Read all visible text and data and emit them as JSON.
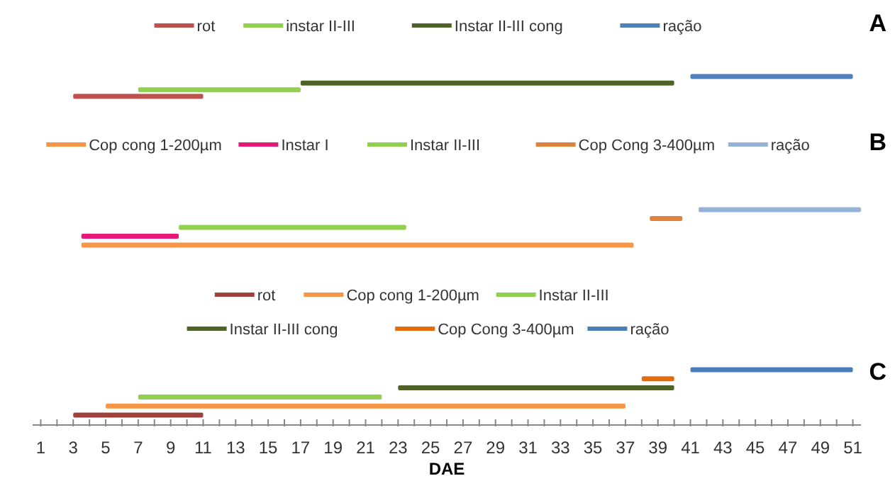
{
  "chart_data": [
    {
      "type": "bar",
      "orientation": "horizontal",
      "stacked": true,
      "categories": [
        null,
        null,
        null,
        null
      ],
      "annotations": [
        "A"
      ],
      "legend": "top",
      "tick_labels": false,
      "xlim": [
        1,
        51
      ],
      "xticks": [
        1,
        3,
        5,
        7,
        9,
        11,
        13,
        15,
        17,
        19,
        21,
        23,
        25,
        27,
        29,
        31,
        33,
        35,
        37,
        39,
        41,
        43,
        45,
        47,
        49,
        51
      ],
      "series": [
        {
          "name": "rot",
          "color": "#c0504d",
          "base": [
            null,
            null,
            null,
            3
          ],
          "values": [
            null,
            null,
            null,
            8
          ]
        },
        {
          "name": "instar II-III",
          "color": "#92d050",
          "base": [
            null,
            null,
            7,
            null
          ],
          "values": [
            null,
            null,
            10,
            null
          ]
        },
        {
          "name": "Instar II-III cong",
          "color": "#4f6228",
          "base": [
            null,
            17,
            null,
            null
          ],
          "values": [
            null,
            23,
            null,
            null
          ]
        },
        {
          "name": "ração",
          "color": "#4f81bd",
          "base": [
            41,
            null,
            null,
            null
          ],
          "values": [
            10,
            null,
            null,
            null
          ]
        }
      ]
    },
    {
      "type": "bar",
      "orientation": "horizontal",
      "stacked": true,
      "categories": [
        null,
        null,
        null,
        null,
        null
      ],
      "annotations": [
        "B"
      ],
      "legend": "top",
      "tick_labels": false,
      "xlim": [
        1,
        51
      ],
      "xticks": [
        1,
        3,
        5,
        7,
        9,
        11,
        13,
        15,
        17,
        19,
        21,
        23,
        25,
        27,
        29,
        31,
        33,
        35,
        37,
        39,
        41,
        43,
        45,
        47,
        49,
        51
      ],
      "series": [
        {
          "name": "Cop cong 1-200µm",
          "color": "#f79646",
          "base": [
            null,
            null,
            null,
            null,
            3.5
          ],
          "values": [
            null,
            null,
            null,
            null,
            34
          ]
        },
        {
          "name": "Instar I",
          "color": "#e6197a",
          "base": [
            null,
            null,
            null,
            3.5,
            null
          ],
          "values": [
            null,
            null,
            null,
            6,
            null
          ]
        },
        {
          "name": "Instar II-III",
          "color": "#92d050",
          "base": [
            null,
            null,
            9.5,
            null,
            null
          ],
          "values": [
            null,
            null,
            14,
            null,
            null
          ]
        },
        {
          "name": "Cop Cong 3-400µm",
          "color": "#e0823c",
          "base": [
            null,
            38.5,
            null,
            null,
            null
          ],
          "values": [
            null,
            2,
            null,
            null,
            null
          ]
        },
        {
          "name": "ração",
          "color": "#95b3d7",
          "base": [
            41.5,
            null,
            null,
            null,
            null
          ],
          "values": [
            10,
            null,
            null,
            null,
            null
          ]
        }
      ]
    },
    {
      "type": "bar",
      "orientation": "horizontal",
      "stacked": true,
      "categories": [
        null,
        null,
        null,
        null,
        null,
        null
      ],
      "annotations": [
        "C"
      ],
      "legend": "top",
      "xlabel": "DAE",
      "xlim": [
        0.5,
        51.5
      ],
      "xticks": [
        1,
        {
          "value": 2,
          "label": null
        },
        3,
        {
          "value": 4,
          "label": null
        },
        5,
        {
          "value": 6,
          "label": null
        },
        7,
        {
          "value": 8,
          "label": null
        },
        9,
        {
          "value": 10,
          "label": null
        },
        11,
        {
          "value": 12,
          "label": null
        },
        13,
        {
          "value": 14,
          "label": null
        },
        15,
        {
          "value": 16,
          "label": null
        },
        17,
        {
          "value": 18,
          "label": null
        },
        19,
        {
          "value": 20,
          "label": null
        },
        21,
        {
          "value": 22,
          "label": null
        },
        23,
        {
          "value": 24,
          "label": null
        },
        25,
        {
          "value": 26,
          "label": null
        },
        27,
        {
          "value": 28,
          "label": null
        },
        29,
        {
          "value": 30,
          "label": null
        },
        31,
        {
          "value": 32,
          "label": null
        },
        33,
        {
          "value": 34,
          "label": null
        },
        35,
        {
          "value": 36,
          "label": null
        },
        37,
        {
          "value": 38,
          "label": null
        },
        39,
        {
          "value": 40,
          "label": null
        },
        41,
        {
          "value": 42,
          "label": null
        },
        43,
        {
          "value": 44,
          "label": null
        },
        45,
        {
          "value": 46,
          "label": null
        },
        47,
        {
          "value": 48,
          "label": null
        },
        49,
        {
          "value": 50,
          "label": null
        },
        51
      ],
      "series": [
        {
          "name": "rot",
          "color": "#a0403d",
          "base": [
            null,
            null,
            null,
            null,
            null,
            3
          ],
          "values": [
            null,
            null,
            null,
            null,
            null,
            8
          ]
        },
        {
          "name": "Cop cong 1-200µm",
          "color": "#f79646",
          "base": [
            null,
            null,
            null,
            null,
            5,
            null
          ],
          "values": [
            null,
            null,
            null,
            null,
            32,
            null
          ]
        },
        {
          "name": "Instar II-III",
          "color": "#92d050",
          "base": [
            null,
            null,
            null,
            7,
            null,
            null
          ],
          "values": [
            null,
            null,
            null,
            15,
            null,
            null
          ]
        },
        {
          "name": "Instar II-III cong",
          "color": "#4f6228",
          "base": [
            null,
            null,
            23,
            null,
            null,
            null
          ],
          "values": [
            null,
            null,
            17,
            null,
            null,
            null
          ]
        },
        {
          "name": "Cop Cong 3-400µm",
          "color": "#e46c0a",
          "base": [
            null,
            38,
            null,
            null,
            null,
            null
          ],
          "values": [
            null,
            2,
            null,
            null,
            null,
            null
          ]
        },
        {
          "name": "ração",
          "color": "#4a7ebb",
          "base": [
            41,
            null,
            null,
            null,
            null,
            null
          ],
          "values": [
            10,
            null,
            null,
            null,
            null,
            null
          ]
        }
      ]
    }
  ]
}
